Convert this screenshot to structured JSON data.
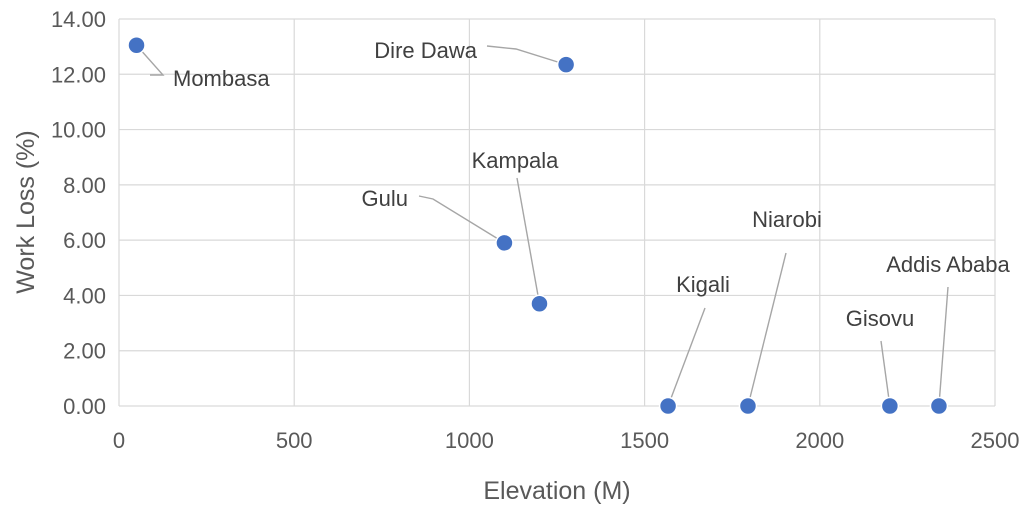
{
  "chart_data": {
    "type": "scatter",
    "xlabel": "Elevation (M)",
    "ylabel": "Work Loss  (%)",
    "xlim": [
      0,
      2500
    ],
    "ylim": [
      0,
      14
    ],
    "x_ticks": [
      "0",
      "500",
      "1000",
      "1500",
      "2000",
      "2500"
    ],
    "y_ticks": [
      "0.00",
      "2.00",
      "4.00",
      "6.00",
      "8.00",
      "10.00",
      "12.00",
      "14.00"
    ],
    "grid": true,
    "legend": "none",
    "marker_color": "#4472c4",
    "points": [
      {
        "label": "Mombasa",
        "x": 50,
        "y": 13.05
      },
      {
        "label": "Dire Dawa",
        "x": 1276,
        "y": 12.35
      },
      {
        "label": "Gulu",
        "x": 1100,
        "y": 5.9
      },
      {
        "label": "Kampala",
        "x": 1200,
        "y": 3.7
      },
      {
        "label": "Kigali",
        "x": 1567,
        "y": 0.0
      },
      {
        "label": "Niarobi",
        "x": 1795,
        "y": 0.0
      },
      {
        "label": "Gisovu",
        "x": 2200,
        "y": 0.0
      },
      {
        "label": "Addis Ababa",
        "x": 2340,
        "y": 0.0
      }
    ]
  }
}
